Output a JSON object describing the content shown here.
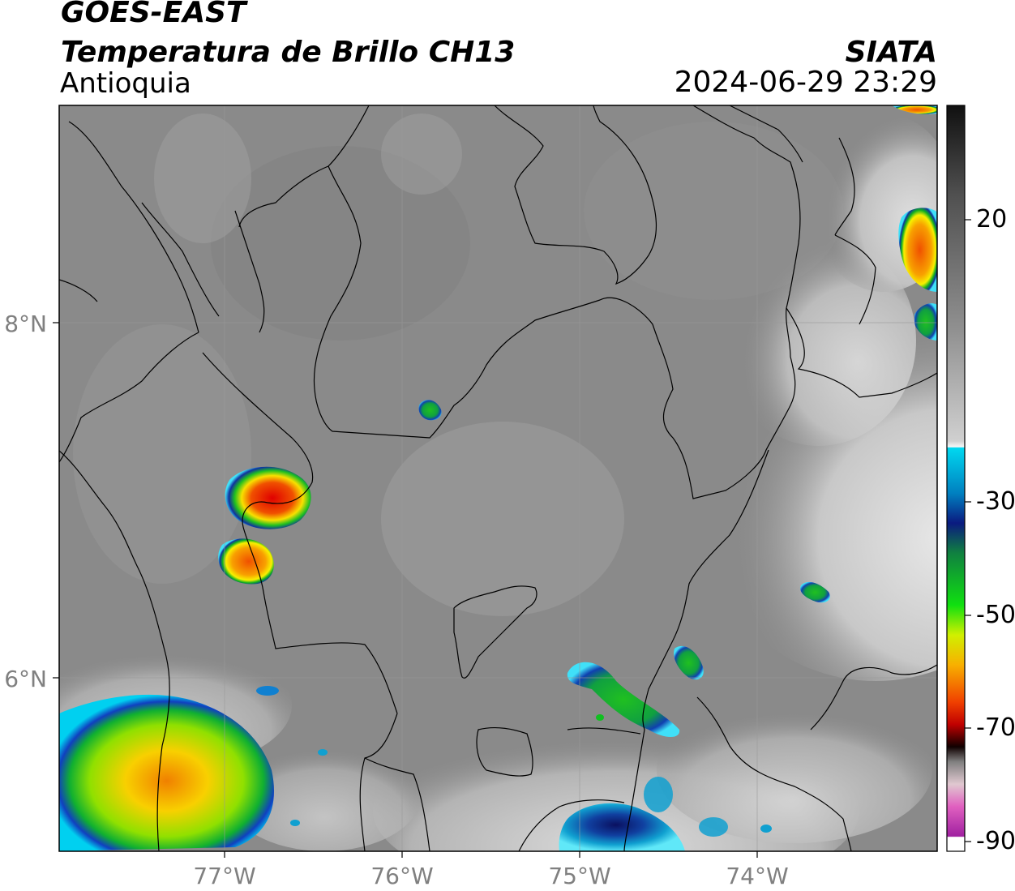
{
  "header": {
    "satellite": "GOES-EAST",
    "product": "Temperatura de Brillo CH13",
    "region": "Antioquia",
    "agency": "SIATA",
    "datetime": "2024-06-29 23:29"
  },
  "map": {
    "lat_labels": [
      "8°N",
      "6°N"
    ],
    "lon_labels": [
      "77°W",
      "76°W",
      "75°W",
      "74°W"
    ]
  },
  "colorbar": {
    "labels": [
      "20",
      "-30",
      "-50",
      "-70",
      "-90"
    ],
    "colors": {
      "warm_gray": "#8a8a8a",
      "cyan": "#00d8f0",
      "dark_blue": "#0a1a80",
      "green": "#10c010",
      "yellow": "#f8f000",
      "orange": "#f89000",
      "red": "#e00000",
      "black": "#101010",
      "magenta": "#c020b0"
    }
  }
}
